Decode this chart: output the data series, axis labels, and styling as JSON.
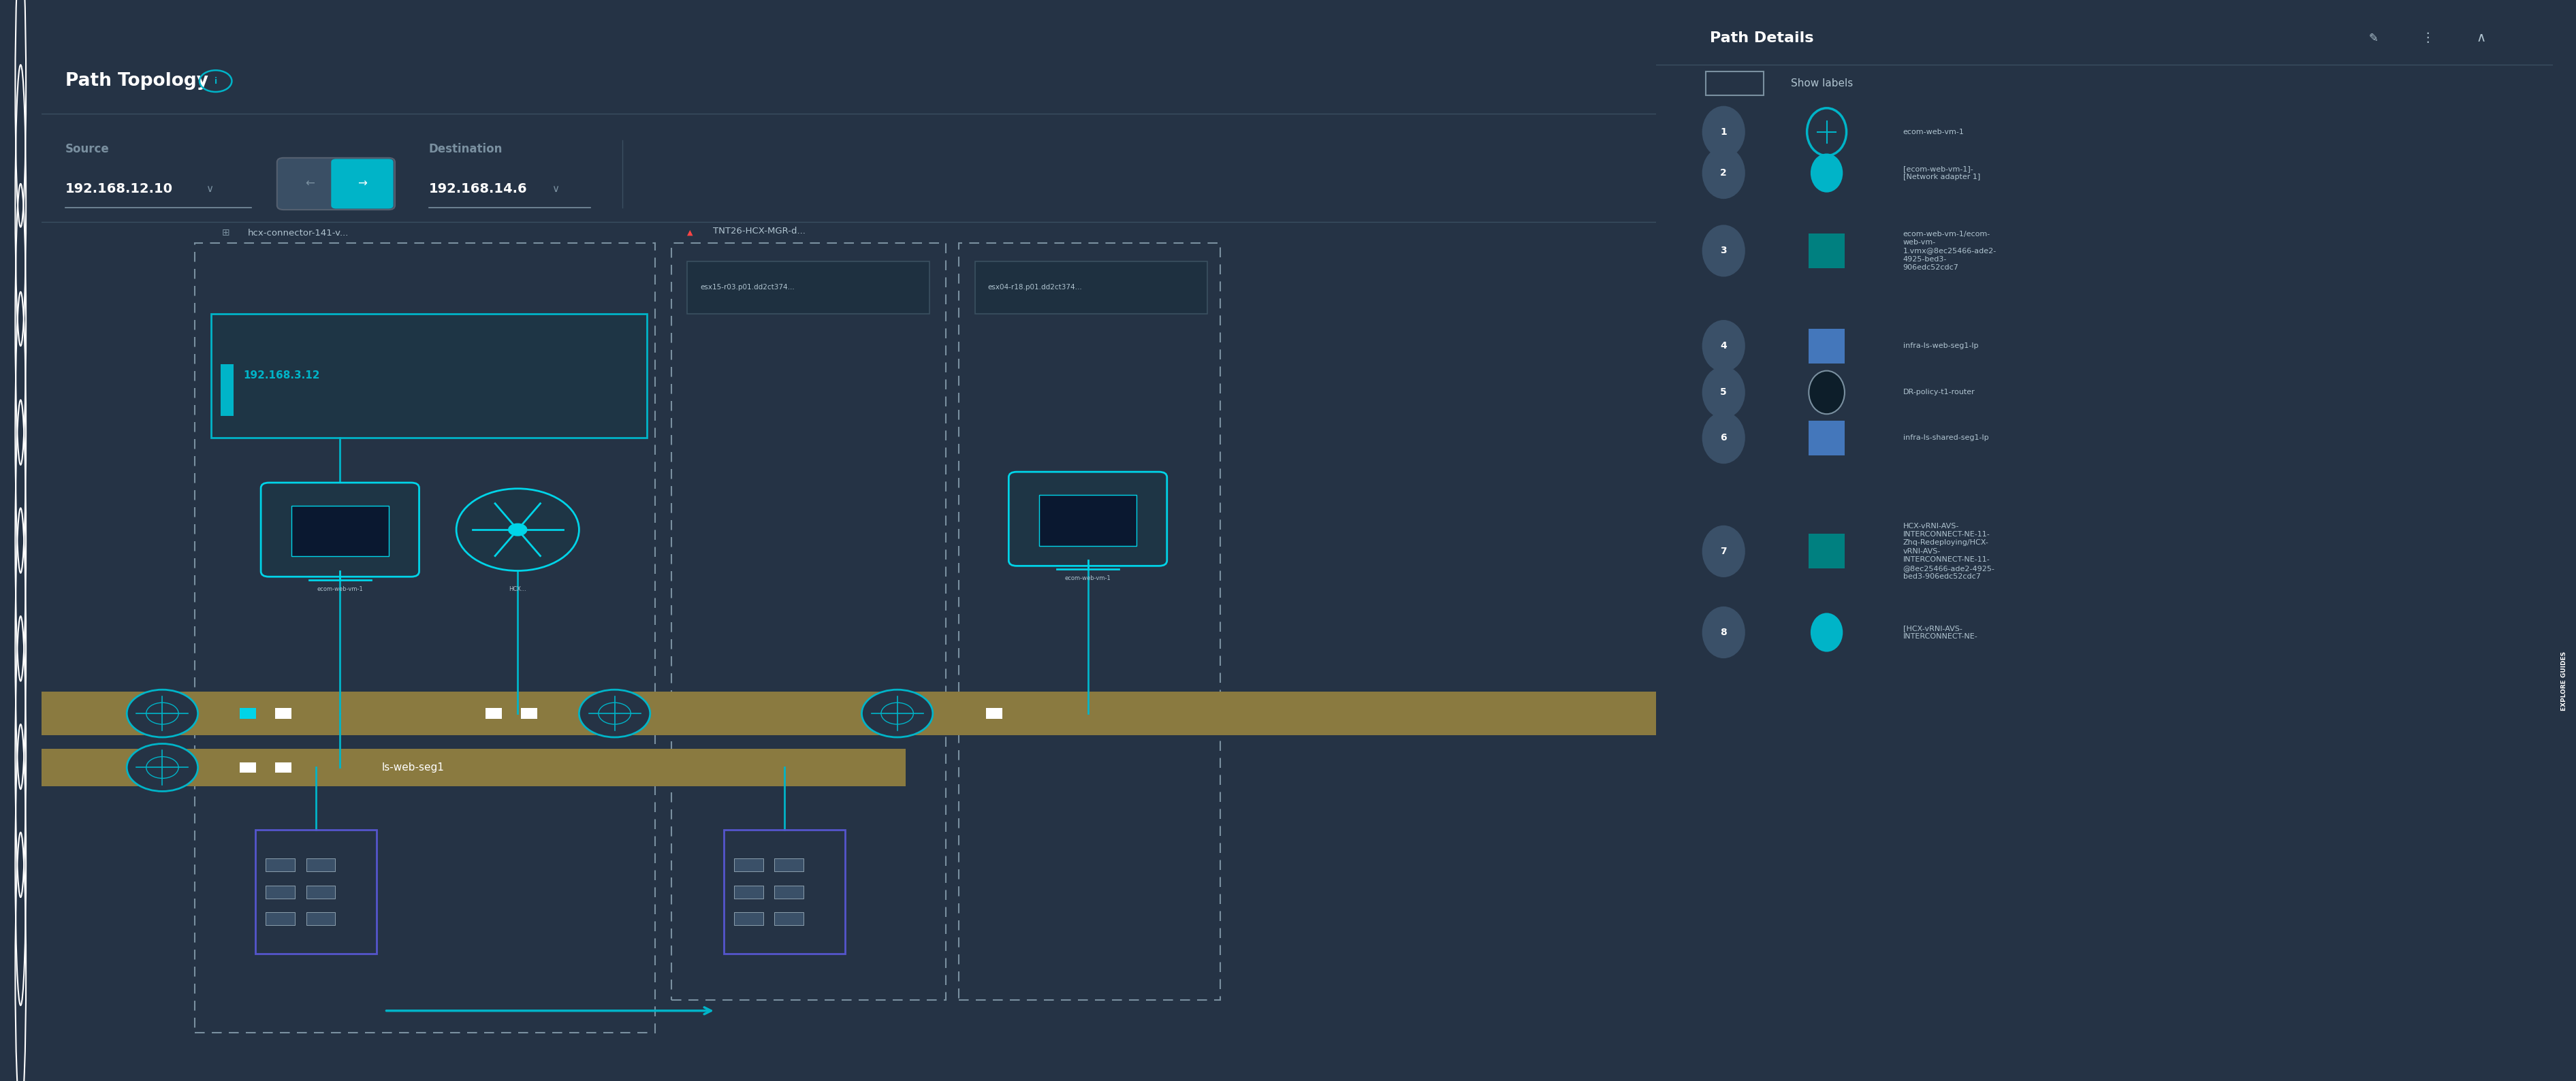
{
  "bg_color": "#253345",
  "sidebar_color": "#1c2d3e",
  "main_bg": "#253345",
  "panel_bg": "#2c3e50",
  "teal": "#00b4c8",
  "teal_dark": "#008c9e",
  "cyan_bright": "#00d4e8",
  "gold": "#8a7a40",
  "gold_light": "#a09050",
  "white": "#ffffff",
  "light_gray": "#b0c4d0",
  "mid_gray": "#7a90a0",
  "dark_gray": "#4a5a6a",
  "divider": "#3a4e60",
  "blue_purple": "#5555cc",
  "item_bg": "#3a5068",
  "inner_box_bg": "#1e3545",
  "esx_box_bg": "#1e3040",
  "esx_box_border": "#3a5060",
  "warn_red": "#ff4444",
  "explore_btn": "#007a99",
  "title": "Path Topology",
  "source_label": "Source",
  "dest_label": "Destination",
  "source_ip": "192.168.12.10",
  "dest_ip": "192.168.14.6",
  "connector_label": "hcx-connector-141-v...",
  "tnt_label": "TNT26-HCX-MGR-d...",
  "subnet_label": "192.168.3.12",
  "esx_label1": "esx15-r03.p01.dd2ct374...",
  "esx_label2": "esx04-r18.p01.dd2ct374...",
  "seg_label": "ls-web-seg1",
  "path_details_title": "Path Details",
  "show_labels": "Show labels",
  "explore_guides": "EXPLORE GUIDES",
  "path_items": [
    {
      "num": "1",
      "icon": "vm_circle",
      "text": "ecom-web-vm-1"
    },
    {
      "num": "2",
      "icon": "dot_teal",
      "text": "[ecom-web-vm-1]-\n[Network adapter 1]"
    },
    {
      "num": "3",
      "icon": "square_teal",
      "text": "ecom-web-vm-1/ecom-\nweb-vm-\n1.vmx@8ec25466-ade2-\n4925-bed3-\n906edc52cdc7"
    },
    {
      "num": "4",
      "icon": "square_blue",
      "text": "infra-ls-web-seg1-lp"
    },
    {
      "num": "5",
      "icon": "dot_black",
      "text": "DR-policy-t1-router"
    },
    {
      "num": "6",
      "icon": "square_blue",
      "text": "infra-ls-shared-seg1-lp"
    },
    {
      "num": "7",
      "icon": "square_teal",
      "text": "HCX-vRNI-AVS-\nINTERCONNECT-NE-11-\nZhq-Redeploying/HCX-\nvRNI-AVS-\nINTERCONNECT-NE-11-\n@8ec25466-ade2-4925-\nbed3-906edc52cdc7"
    },
    {
      "num": "8",
      "icon": "dot_teal",
      "text": "[HCX-vRNI-AVS-\nINTERCONNECT-NE-"
    }
  ]
}
